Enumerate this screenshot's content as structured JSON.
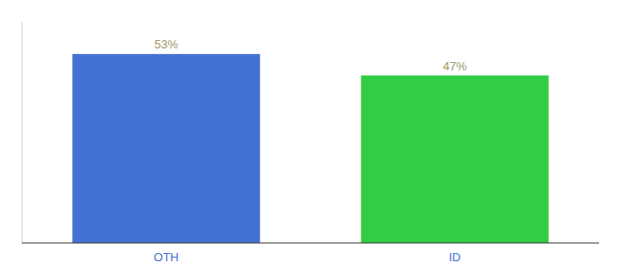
{
  "chart_data": {
    "type": "bar",
    "categories": [
      "OTH",
      "ID"
    ],
    "values": [
      53,
      47
    ],
    "value_labels": [
      "53%",
      "47%"
    ],
    "colors": [
      "#4472d4",
      "#33cc44"
    ],
    "ylim": [
      0,
      62
    ],
    "data_labels": true,
    "tick_labels": "x",
    "grid": false
  }
}
